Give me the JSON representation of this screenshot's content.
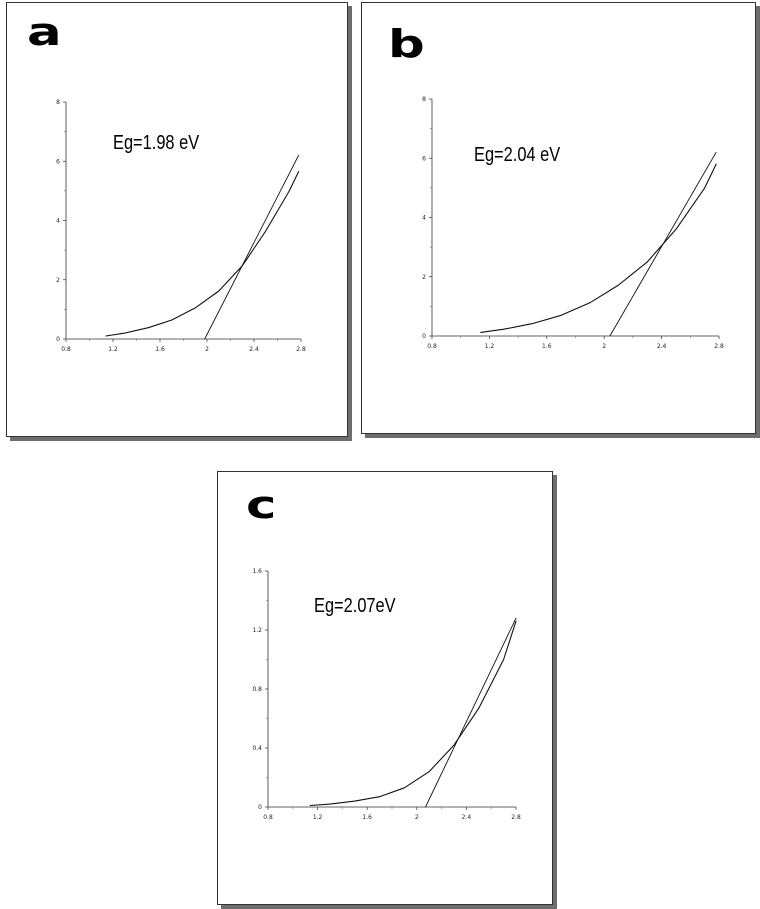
{
  "chart_data": [
    {
      "panel": "a",
      "type": "line",
      "annotation": "Eg=1.98 eV",
      "xlim": [
        0.8,
        2.8
      ],
      "ylim": [
        0,
        8
      ],
      "xticks": [
        0.8,
        1.2,
        1.6,
        2,
        2.4,
        2.8
      ],
      "yticks": [
        0,
        2,
        4,
        6,
        8
      ],
      "xtick_labels": [
        "0.8",
        "1.2",
        "1.6",
        "2",
        "2.4",
        "2.8"
      ],
      "ytick_labels": [
        "0",
        "2",
        "4",
        "6",
        "8"
      ],
      "grid": false,
      "series": [
        {
          "kind": "curve",
          "x": [
            1.14,
            1.3,
            1.5,
            1.7,
            1.9,
            2.1,
            2.3,
            2.5,
            2.7,
            2.78
          ],
          "y": [
            0.1,
            0.2,
            0.38,
            0.64,
            1.05,
            1.62,
            2.47,
            3.65,
            5.0,
            5.65
          ]
        },
        {
          "kind": "tangent",
          "x": [
            1.98,
            2.78
          ],
          "y": [
            0,
            6.2
          ]
        }
      ]
    },
    {
      "panel": "b",
      "type": "line",
      "annotation": "Eg=2.04 eV",
      "xlim": [
        0.8,
        2.8
      ],
      "ylim": [
        0,
        8
      ],
      "xticks": [
        0.8,
        1.2,
        1.6,
        2,
        2.4,
        2.8
      ],
      "yticks": [
        0,
        2,
        4,
        6,
        8
      ],
      "xtick_labels": [
        "0.8",
        "1.2",
        "1.6",
        "2",
        "2.4",
        "2.8"
      ],
      "ytick_labels": [
        "0",
        "2",
        "4",
        "6",
        "8"
      ],
      "grid": false,
      "series": [
        {
          "kind": "curve",
          "x": [
            1.14,
            1.3,
            1.5,
            1.7,
            1.9,
            2.1,
            2.3,
            2.5,
            2.7,
            2.78
          ],
          "y": [
            0.12,
            0.23,
            0.42,
            0.7,
            1.12,
            1.72,
            2.5,
            3.6,
            5.0,
            5.8
          ]
        },
        {
          "kind": "tangent",
          "x": [
            2.04,
            2.78
          ],
          "y": [
            0,
            6.2
          ]
        }
      ]
    },
    {
      "panel": "c",
      "type": "line",
      "annotation": "Eg=2.07eV",
      "xlim": [
        0.8,
        2.8
      ],
      "ylim": [
        0,
        1.6
      ],
      "xticks": [
        0.8,
        1.2,
        1.6,
        2,
        2.4,
        2.8
      ],
      "yticks": [
        0,
        0.4,
        0.8,
        1.2,
        1.6
      ],
      "xtick_labels": [
        "0.8",
        "1.2",
        "1.6",
        "2",
        "2.4",
        "2.8"
      ],
      "ytick_labels": [
        "0",
        "0.4",
        "0.8",
        "1.2",
        "1.6"
      ],
      "grid": false,
      "series": [
        {
          "kind": "curve",
          "x": [
            1.14,
            1.3,
            1.5,
            1.7,
            1.9,
            2.1,
            2.3,
            2.5,
            2.7,
            2.8
          ],
          "y": [
            0.01,
            0.02,
            0.04,
            0.07,
            0.13,
            0.24,
            0.42,
            0.67,
            1.0,
            1.26
          ]
        },
        {
          "kind": "tangent",
          "x": [
            2.07,
            2.8
          ],
          "y": [
            0,
            1.28
          ]
        }
      ]
    }
  ]
}
